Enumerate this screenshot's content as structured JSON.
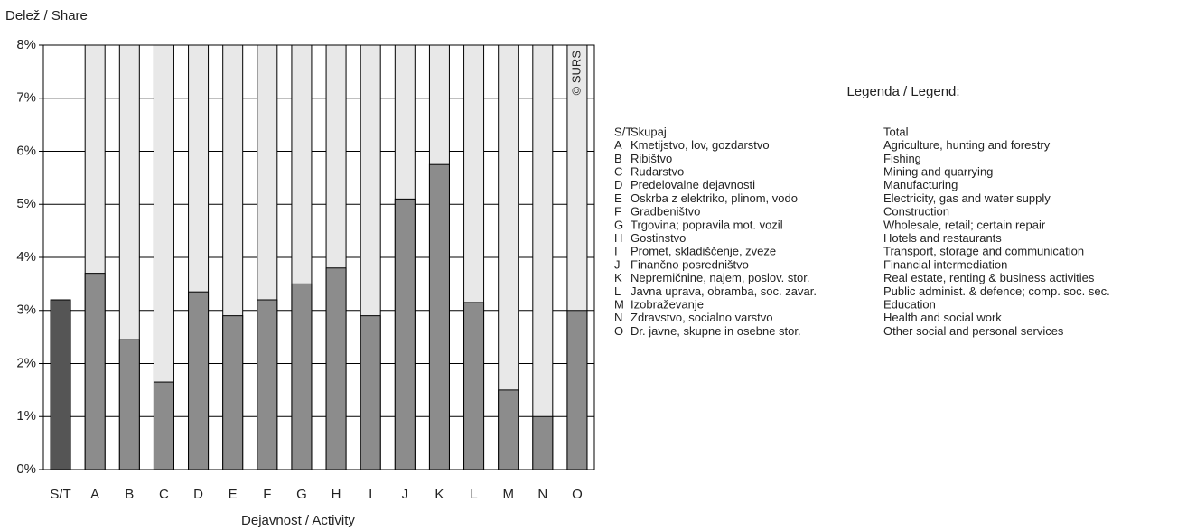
{
  "chart_data": {
    "type": "bar",
    "y_axis_label": "Delež / Share",
    "x_axis_label": "Dejavnost / Activity",
    "annotation": "© SURS",
    "categories": [
      "S/T",
      "A",
      "B",
      "C",
      "D",
      "E",
      "F",
      "G",
      "H",
      "I",
      "J",
      "K",
      "L",
      "M",
      "N",
      "O"
    ],
    "values": [
      3.2,
      3.7,
      2.45,
      1.65,
      3.35,
      2.9,
      3.2,
      3.5,
      3.8,
      2.9,
      5.1,
      5.75,
      3.15,
      1.5,
      1.0,
      3.0
    ],
    "colors": [
      "#555555",
      "#8c8c8c",
      "#8c8c8c",
      "#8c8c8c",
      "#8c8c8c",
      "#8c8c8c",
      "#8c8c8c",
      "#8c8c8c",
      "#8c8c8c",
      "#8c8c8c",
      "#8c8c8c",
      "#8c8c8c",
      "#8c8c8c",
      "#8c8c8c",
      "#8c8c8c",
      "#8c8c8c"
    ],
    "ylim": [
      0,
      8
    ],
    "yticks": [
      {
        "value": 0,
        "label": "0%"
      },
      {
        "value": 1,
        "label": "1%"
      },
      {
        "value": 2,
        "label": "2%"
      },
      {
        "value": 3,
        "label": "3%"
      },
      {
        "value": 4,
        "label": "4%"
      },
      {
        "value": 5,
        "label": "5%"
      },
      {
        "value": 6,
        "label": "6%"
      },
      {
        "value": 7,
        "label": "7%"
      },
      {
        "value": 8,
        "label": "8%"
      }
    ],
    "grid": true,
    "legend": {
      "title": "Legenda / Legend:",
      "entries": [
        {
          "sl": "Skupaj",
          "en": "Total"
        },
        {
          "sl": "Kmetijstvo, lov, gozdarstvo",
          "en": "Agriculture, hunting and forestry"
        },
        {
          "sl": "Ribištvo",
          "en": "Fishing"
        },
        {
          "sl": "Rudarstvo",
          "en": "Mining and quarrying"
        },
        {
          "sl": "Predelovalne dejavnosti",
          "en": "Manufacturing"
        },
        {
          "sl": "Oskrba z elektriko, plinom, vodo",
          "en": "Electricity, gas and water supply"
        },
        {
          "sl": "Gradbeništvo",
          "en": "Construction"
        },
        {
          "sl": "Trgovina; popravila mot. vozil",
          "en": "Wholesale, retail; certain repair"
        },
        {
          "sl": "Gostinstvo",
          "en": "Hotels and restaurants"
        },
        {
          "sl": "Promet, skladiščenje, zveze",
          "en": "Transport, storage and communication"
        },
        {
          "sl": "Finančno posredništvo",
          "en": "Financial intermediation"
        },
        {
          "sl": "Nepremičnine, najem, poslov. stor.",
          "en": "Real estate, renting & business activities"
        },
        {
          "sl": "Javna uprava, obramba, soc. zavar.",
          "en": "Public administ. & defence; comp. soc. sec."
        },
        {
          "sl": "Izobraževanje",
          "en": "Education"
        },
        {
          "sl": "Zdravstvo, socialno varstvo",
          "en": "Health and social work"
        },
        {
          "sl": "Dr. javne, skupne in osebne stor.",
          "en": "Other social and personal services"
        }
      ]
    }
  }
}
